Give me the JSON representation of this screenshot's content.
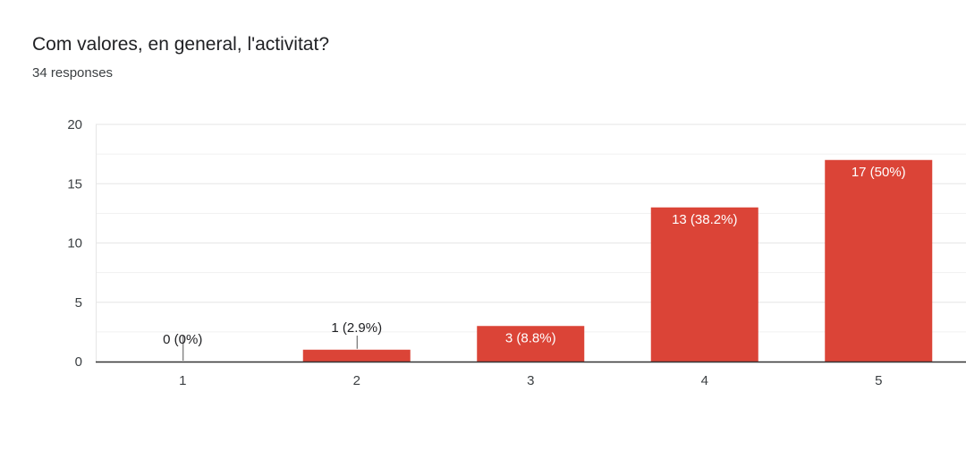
{
  "header": {
    "title": "Com valores, en general, l'activitat?",
    "response_count": "34 responses"
  },
  "colors": {
    "bar": "#db4437",
    "grid": "#e6e6e6",
    "axis": "#333333",
    "leader": "#555555"
  },
  "chart_data": {
    "type": "bar",
    "title": "Com valores, en general, l'activitat?",
    "xlabel": "",
    "ylabel": "",
    "categories": [
      "1",
      "2",
      "3",
      "4",
      "5"
    ],
    "values": [
      0,
      1,
      3,
      13,
      17
    ],
    "data_labels": [
      "0 (0%)",
      "1 (2.9%)",
      "3 (8.8%)",
      "13 (38.2%)",
      "17 (50%)"
    ],
    "ylim": [
      0,
      20
    ],
    "yticks": [
      0,
      5,
      10,
      15,
      20
    ],
    "grid": true
  }
}
